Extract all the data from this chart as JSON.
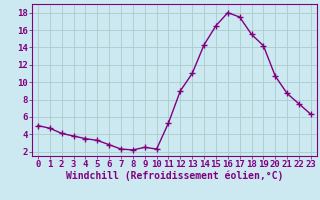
{
  "x": [
    0,
    1,
    2,
    3,
    4,
    5,
    6,
    7,
    8,
    9,
    10,
    11,
    12,
    13,
    14,
    15,
    16,
    17,
    18,
    19,
    20,
    21,
    22,
    23
  ],
  "y": [
    5.0,
    4.7,
    4.1,
    3.8,
    3.5,
    3.3,
    2.8,
    2.3,
    2.2,
    2.5,
    2.3,
    5.3,
    9.0,
    11.0,
    14.3,
    16.5,
    18.0,
    17.5,
    15.5,
    14.2,
    10.7,
    8.7,
    7.5,
    6.3
  ],
  "line_color": "#800080",
  "marker": "+",
  "marker_size": 4,
  "line_width": 1.0,
  "bg_color": "#cce8f0",
  "grid_color": "#aacccc",
  "xlabel": "Windchill (Refroidissement éolien,°C)",
  "xlabel_fontsize": 7,
  "tick_fontsize": 6.5,
  "yticks": [
    2,
    4,
    6,
    8,
    10,
    12,
    14,
    16,
    18
  ],
  "xticks": [
    0,
    1,
    2,
    3,
    4,
    5,
    6,
    7,
    8,
    9,
    10,
    11,
    12,
    13,
    14,
    15,
    16,
    17,
    18,
    19,
    20,
    21,
    22,
    23
  ],
  "ylim": [
    1.5,
    19.0
  ],
  "xlim": [
    -0.5,
    23.5
  ]
}
